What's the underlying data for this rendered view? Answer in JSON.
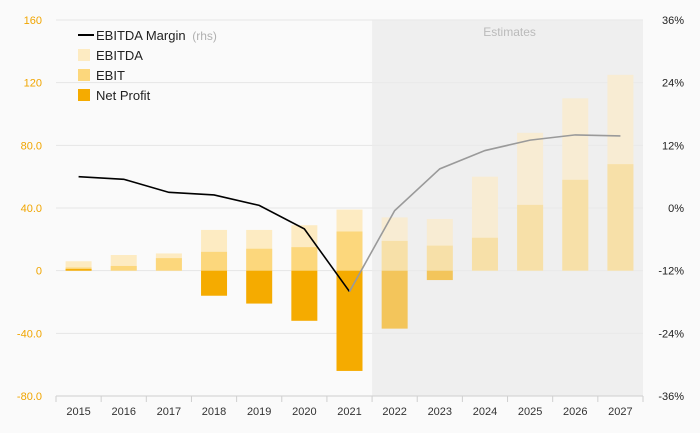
{
  "chart_data": {
    "type": "bar",
    "categories": [
      "2015",
      "2016",
      "2017",
      "2018",
      "2019",
      "2020",
      "2021",
      "2022",
      "2023",
      "2024",
      "2025",
      "2026",
      "2027"
    ],
    "estimates_label": "Estimates",
    "estimates_from_index": 7,
    "series": [
      {
        "name": "EBITDA",
        "values": [
          6,
          10,
          11,
          26,
          26,
          29,
          39,
          34,
          33,
          60,
          88,
          110,
          125
        ],
        "color": "#fdebc2"
      },
      {
        "name": "EBIT",
        "values": [
          2,
          3,
          8,
          12,
          14,
          15,
          25,
          19,
          16,
          21,
          42,
          58,
          68
        ],
        "color": "#fcd77c"
      },
      {
        "name": "Net Profit",
        "values": [
          1,
          0,
          0,
          -16,
          -21,
          -32,
          -64,
          -37,
          -6,
          0,
          0,
          0,
          0
        ],
        "color": "#f5ab00"
      }
    ],
    "line_series": {
      "name": "EBITDA Margin",
      "unit_note": "(rhs)",
      "values": [
        6,
        5.5,
        3,
        2.5,
        0.5,
        -4,
        -16,
        -0.5,
        7.5,
        11,
        13,
        14,
        13.8
      ],
      "color": "#000000"
    },
    "y_left": {
      "ticks": [
        160,
        120,
        80.0,
        40.0,
        0,
        -40.0,
        -80.0
      ],
      "tick_labels": [
        "160",
        "120",
        "80.0",
        "40.0",
        "0",
        "-40.0",
        "-80.0"
      ],
      "min": -80,
      "max": 160,
      "color": "#f0a500"
    },
    "y_right": {
      "ticks": [
        36,
        24,
        12,
        0,
        -12,
        -24,
        -36
      ],
      "tick_labels": [
        "36%",
        "24%",
        "12%",
        "0%",
        "-12%",
        "-24%",
        "-36%"
      ],
      "min": -36,
      "max": 36
    },
    "legend": {
      "placement": "top-left",
      "items": [
        "EBITDA Margin",
        "EBITDA",
        "EBIT",
        "Net Profit"
      ]
    },
    "grid": true
  }
}
